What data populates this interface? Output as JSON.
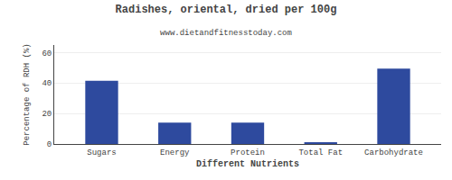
{
  "chart_data": {
    "type": "bar",
    "title": "Radishes, oriental, dried per 100g",
    "subtitle": "www.dietandfitnesstoday.com",
    "xlabel": "Different Nutrients",
    "ylabel": "Percentage of RDH (%)",
    "categories": [
      "Sugars",
      "Energy",
      "Protein",
      "Total Fat",
      "Carbohydrate"
    ],
    "values": [
      41.5,
      14.0,
      14.0,
      1.2,
      49.5
    ],
    "color": "#2e4a9e",
    "ylim": [
      0,
      65
    ],
    "yticks": [
      0,
      20,
      40,
      60
    ],
    "grid": true
  }
}
